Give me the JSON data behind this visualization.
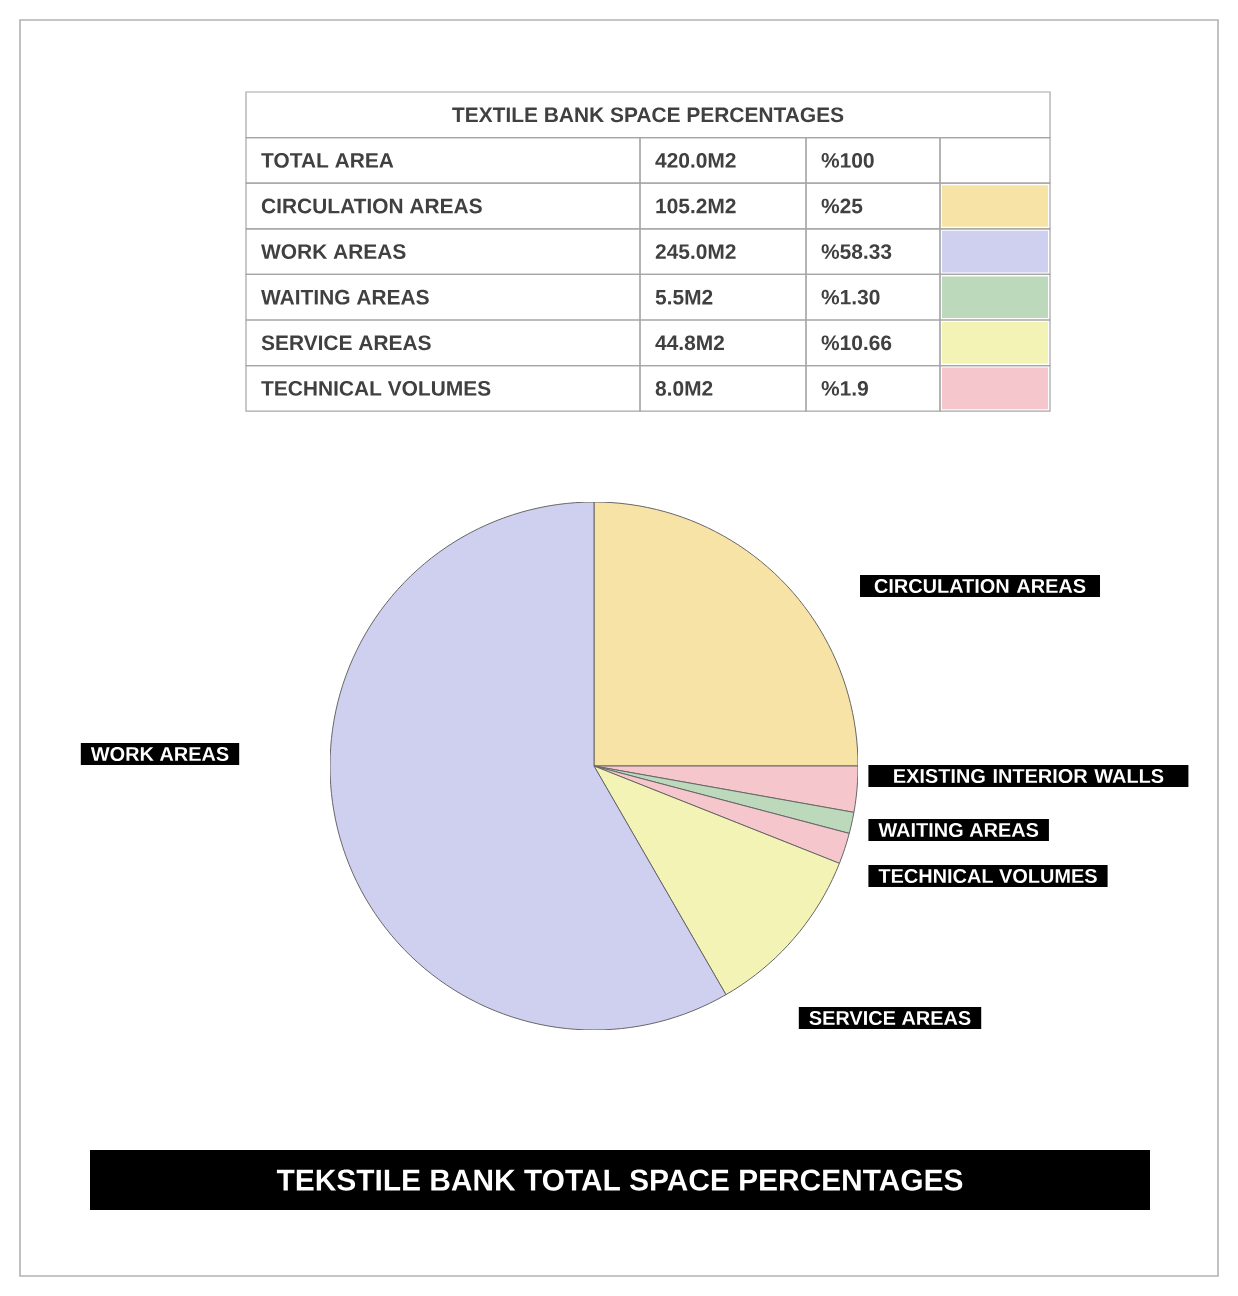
{
  "chart_data": {
    "type": "pie",
    "title": "TEKSTILE BANK TOTAL SPACE PERCENTAGES",
    "categories": [
      "CIRCULATION AREAS",
      "EXISTING INTERIOR WALLS",
      "WAITING AREAS",
      "TECHNICAL VOLUMES",
      "SERVICE AREAS",
      "WORK AREAS"
    ],
    "values": [
      25,
      2.81,
      1.3,
      1.9,
      10.66,
      58.33
    ],
    "colors": [
      "#f7e3a6",
      "#f5c6cc",
      "#bcd9bc",
      "#f5c6cc",
      "#f3f3b5",
      "#cfcff0"
    ],
    "annotations": [
      "TEXTILE BANK SPACE PERCENTAGES",
      "TOTAL AREA",
      "420.0M2",
      "%100",
      "CIRCULATION AREAS",
      "105.2M2",
      "%25",
      "WORK AREAS",
      "245.0M2",
      "%58.33",
      "WAITING AREAS",
      "5.5M2",
      "%1.30",
      "SERVICE AREAS",
      "44.8M2",
      "%10.66",
      "TECHNICAL VOLUMES",
      "8.0M2",
      "%1.9"
    ]
  }
}
